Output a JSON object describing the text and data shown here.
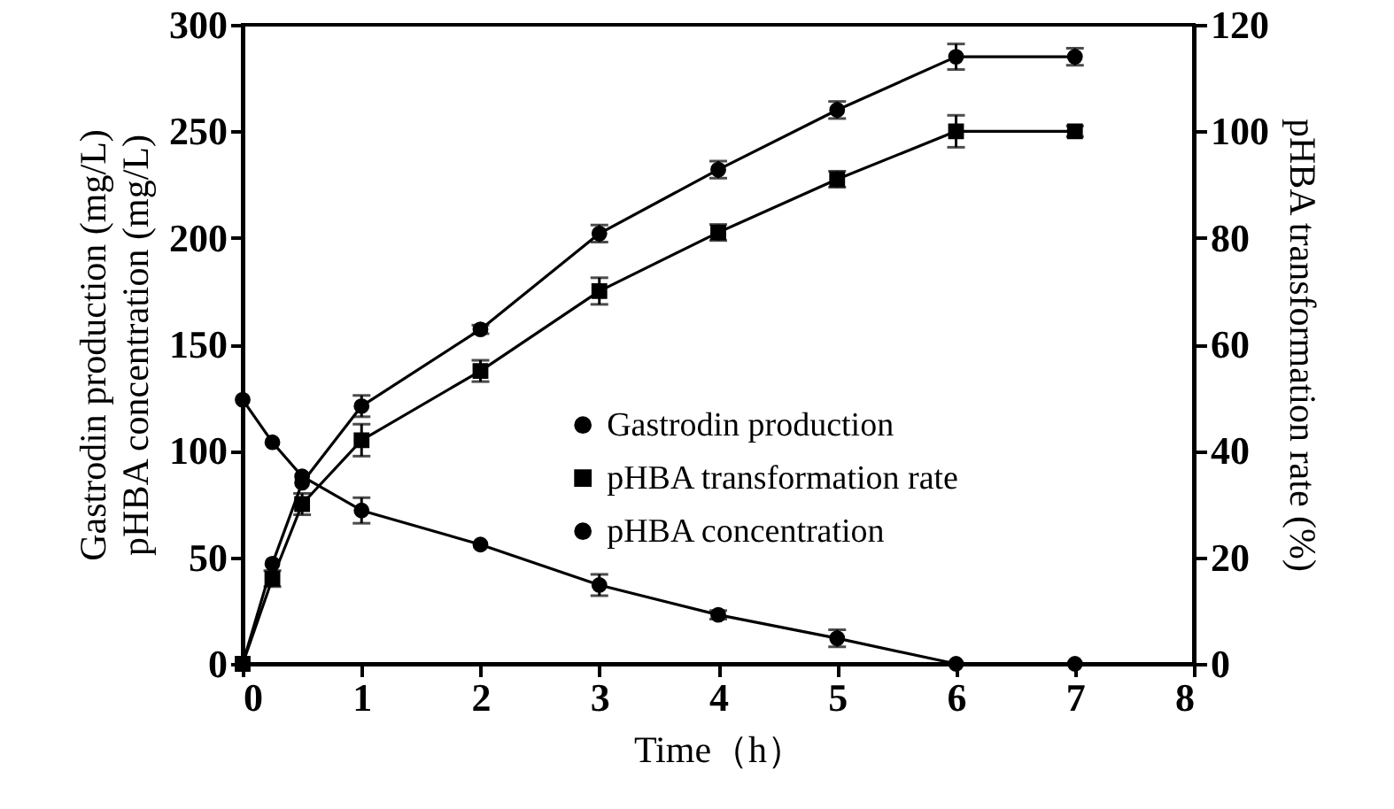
{
  "chart_data": {
    "type": "line",
    "xlabel": "Time（h）",
    "ylabel": "Gastrodin production (mg/L)\npHBA concentration (mg/L)",
    "y2label": "pHBA transformation rate (%)",
    "xlim": [
      0,
      8
    ],
    "xticks": [
      0,
      1,
      2,
      3,
      4,
      5,
      6,
      7,
      8
    ],
    "ylim": [
      0,
      300
    ],
    "yticks": [
      0,
      50,
      100,
      150,
      200,
      250,
      300
    ],
    "y2lim": [
      0,
      120
    ],
    "y2ticks": [
      0,
      20,
      40,
      60,
      80,
      100,
      120
    ],
    "grid": false,
    "legend": "center right",
    "line_style": "solid",
    "series": [
      {
        "name": "Gastrodin production",
        "color": "#000000",
        "marker": "circle",
        "x": [
          0,
          0.25,
          0.5,
          1,
          2,
          3,
          4,
          5,
          6,
          7
        ],
        "values": [
          0,
          47,
          85,
          121,
          157,
          202,
          232,
          260,
          285,
          285
        ],
        "errors": [
          null,
          null,
          null,
          5,
          2,
          4,
          4,
          4,
          6,
          4
        ]
      },
      {
        "name": "pHBA transformation rate",
        "color": "#000000",
        "marker": "square",
        "axis": "y2",
        "x": [
          0,
          0.25,
          0.5,
          1,
          2,
          3,
          4,
          5,
          6,
          7
        ],
        "values": [
          0,
          16,
          30,
          42,
          55,
          70,
          81,
          91,
          100,
          100
        ],
        "errors": [
          null,
          1.5,
          2,
          3,
          2,
          2.5,
          1.5,
          1.5,
          3,
          1
        ]
      },
      {
        "name": "pHBA concentration",
        "color": "#000000",
        "marker": "circle",
        "x": [
          0,
          0.25,
          0.5,
          1,
          2,
          3,
          4,
          5,
          6,
          7
        ],
        "values": [
          124,
          104,
          88,
          72,
          56,
          37,
          23,
          12,
          0,
          0
        ],
        "errors": [
          null,
          null,
          null,
          6,
          null,
          5,
          2,
          4,
          null,
          null
        ]
      }
    ]
  }
}
